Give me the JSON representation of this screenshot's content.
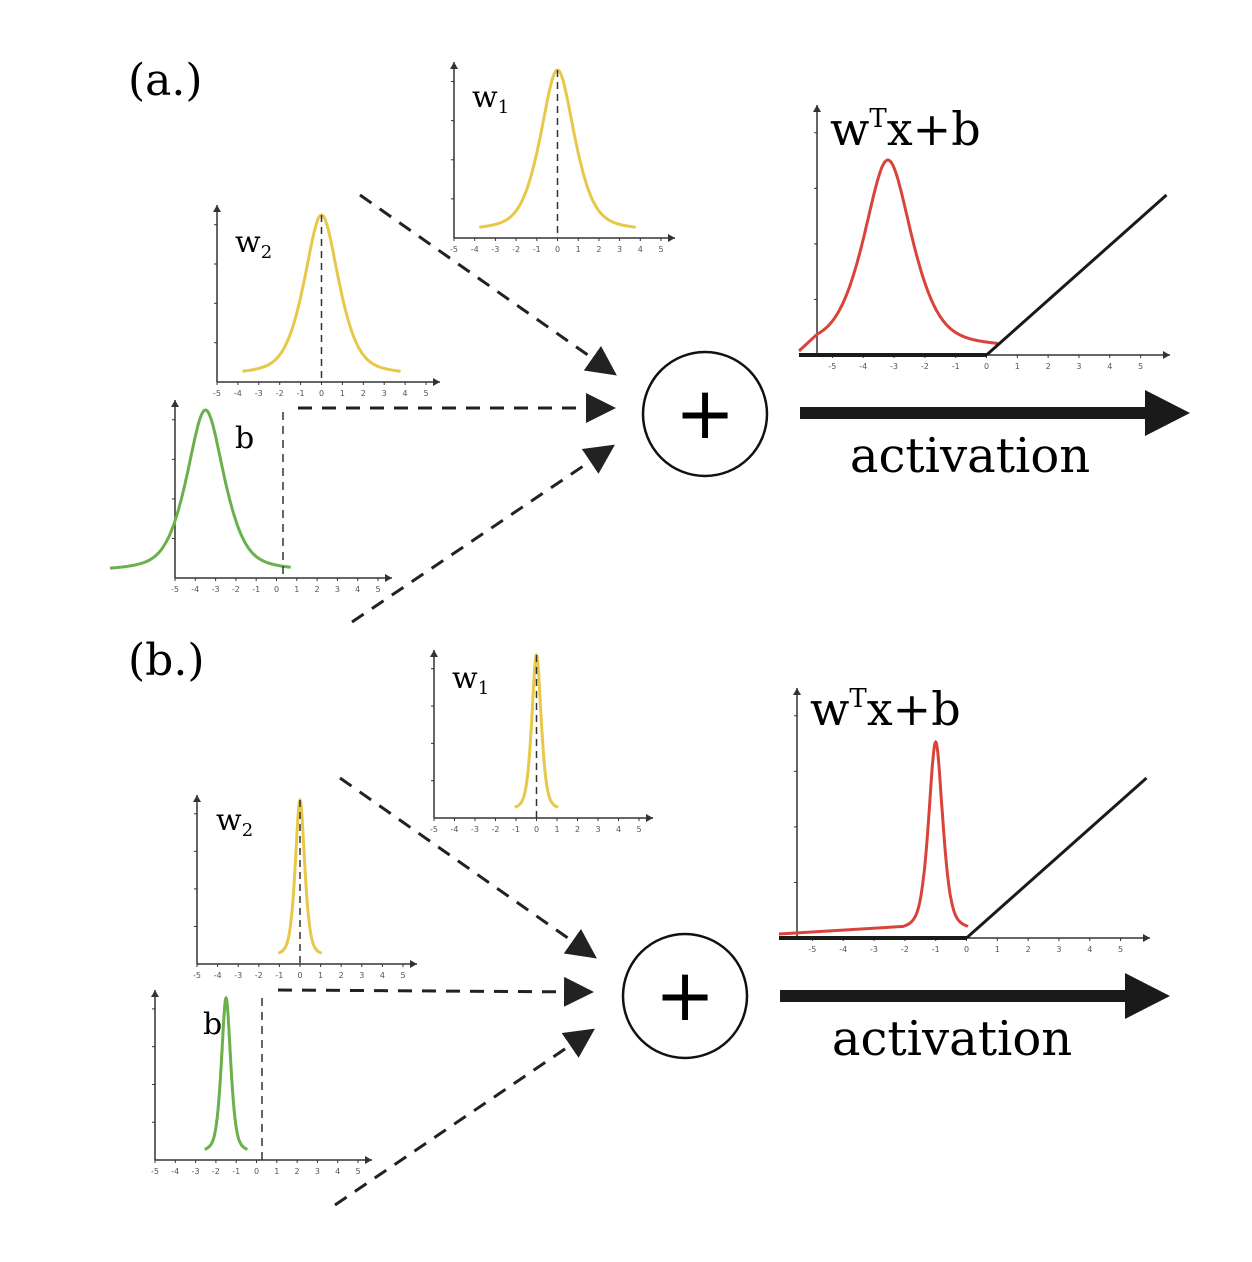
{
  "panels": [
    {
      "id": "a",
      "label": "(a.)",
      "w1": {
        "label": "w",
        "sub": "1",
        "mean": 0,
        "width": 0.9
      },
      "w2": {
        "label": "w",
        "sub": "2",
        "mean": 0,
        "width": 0.9
      },
      "b": {
        "label": "b",
        "mean": -3.5,
        "width": 1.0
      },
      "output": {
        "label_w": "w",
        "label_T": "T",
        "label_rest": "x+b",
        "mean": -3.2,
        "width": 0.85
      },
      "activation_label": "activation",
      "plus": "+"
    },
    {
      "id": "b",
      "label": "(b.)",
      "w1": {
        "label": "w",
        "sub": "1",
        "mean": 0,
        "width": 0.25
      },
      "w2": {
        "label": "w",
        "sub": "2",
        "mean": 0,
        "width": 0.25
      },
      "b": {
        "label": "b",
        "mean": -1.5,
        "width": 0.25
      },
      "output": {
        "label_w": "w",
        "label_T": "T",
        "label_rest": "x+b",
        "mean": -1.0,
        "width": 0.25
      },
      "activation_label": "activation",
      "plus": "+"
    }
  ],
  "ticks": [
    "-5",
    "-4",
    "-3",
    "-2",
    "-1",
    "0",
    "1",
    "2",
    "3",
    "4",
    "5"
  ],
  "colors": {
    "weight": "#e8c84a",
    "bias": "#6ab04c",
    "output": "#d9443a",
    "relu": "#1a1a1a"
  }
}
